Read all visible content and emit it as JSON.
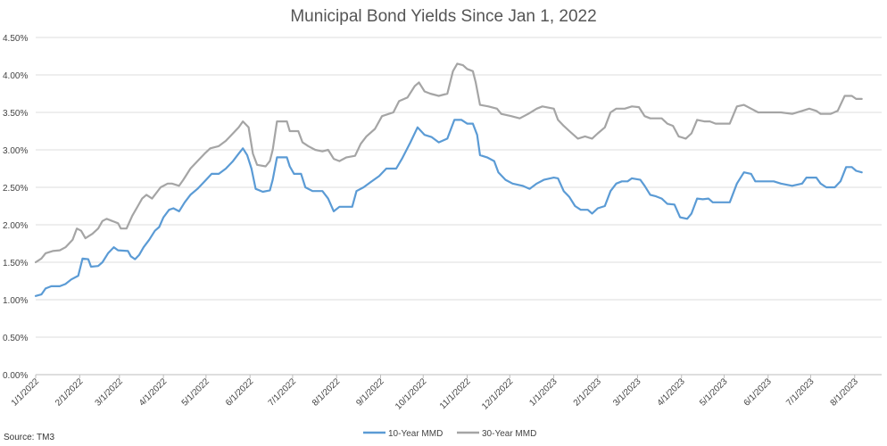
{
  "chart_data": {
    "type": "line",
    "title": "Municipal Bond Yields Since Jan 1, 2022",
    "source": "Source: TM3",
    "xlabel": "",
    "ylabel": "",
    "ylim": [
      0,
      4.5
    ],
    "y_ticks": [
      "0.00%",
      "0.50%",
      "1.00%",
      "1.50%",
      "2.00%",
      "2.50%",
      "3.00%",
      "3.50%",
      "4.00%",
      "4.50%"
    ],
    "y_tick_values": [
      0,
      0.5,
      1.0,
      1.5,
      2.0,
      2.5,
      3.0,
      3.5,
      4.0,
      4.5
    ],
    "x_ticks": [
      "1/1/2022",
      "2/1/2022",
      "3/1/2022",
      "4/1/2022",
      "5/1/2022",
      "6/1/2022",
      "7/1/2022",
      "8/1/2022",
      "9/1/2022",
      "10/1/2022",
      "11/1/2022",
      "12/1/2022",
      "1/1/2023",
      "2/1/2023",
      "3/1/2023",
      "4/1/2023",
      "5/1/2023",
      "6/1/2023",
      "7/1/2023",
      "8/1/2023"
    ],
    "x_range": [
      "2022-01-01",
      "2023-08-20"
    ],
    "grid": "horizontal",
    "legend_position": "bottom",
    "colors": {
      "ten_year": "#5b9bd5",
      "thirty_year": "#a5a5a5",
      "grid": "#dcdcdc"
    },
    "series": [
      {
        "name": "10-Year MMD",
        "color": "#5b9bd5",
        "points": [
          [
            "2022-01-01",
            1.05
          ],
          [
            "2022-01-05",
            1.07
          ],
          [
            "2022-01-08",
            1.15
          ],
          [
            "2022-01-12",
            1.18
          ],
          [
            "2022-01-18",
            1.18
          ],
          [
            "2022-01-22",
            1.21
          ],
          [
            "2022-01-26",
            1.27
          ],
          [
            "2022-01-31",
            1.32
          ],
          [
            "2022-02-03",
            1.55
          ],
          [
            "2022-02-07",
            1.54
          ],
          [
            "2022-02-09",
            1.44
          ],
          [
            "2022-02-14",
            1.45
          ],
          [
            "2022-02-17",
            1.5
          ],
          [
            "2022-02-21",
            1.62
          ],
          [
            "2022-02-25",
            1.7
          ],
          [
            "2022-02-28",
            1.66
          ],
          [
            "2022-03-07",
            1.65
          ],
          [
            "2022-03-09",
            1.58
          ],
          [
            "2022-03-12",
            1.54
          ],
          [
            "2022-03-15",
            1.6
          ],
          [
            "2022-03-18",
            1.7
          ],
          [
            "2022-03-22",
            1.8
          ],
          [
            "2022-03-26",
            1.92
          ],
          [
            "2022-03-29",
            1.97
          ],
          [
            "2022-04-01",
            2.1
          ],
          [
            "2022-04-05",
            2.2
          ],
          [
            "2022-04-08",
            2.22
          ],
          [
            "2022-04-12",
            2.18
          ],
          [
            "2022-04-16",
            2.3
          ],
          [
            "2022-04-20",
            2.4
          ],
          [
            "2022-04-25",
            2.48
          ],
          [
            "2022-05-01",
            2.6
          ],
          [
            "2022-05-05",
            2.68
          ],
          [
            "2022-05-10",
            2.68
          ],
          [
            "2022-05-15",
            2.75
          ],
          [
            "2022-05-20",
            2.85
          ],
          [
            "2022-05-24",
            2.95
          ],
          [
            "2022-05-27",
            3.02
          ],
          [
            "2022-05-30",
            2.93
          ],
          [
            "2022-06-02",
            2.75
          ],
          [
            "2022-06-05",
            2.48
          ],
          [
            "2022-06-10",
            2.44
          ],
          [
            "2022-06-15",
            2.46
          ],
          [
            "2022-06-17",
            2.6
          ],
          [
            "2022-06-20",
            2.9
          ],
          [
            "2022-06-27",
            2.9
          ],
          [
            "2022-06-29",
            2.78
          ],
          [
            "2022-07-02",
            2.68
          ],
          [
            "2022-07-07",
            2.68
          ],
          [
            "2022-07-10",
            2.5
          ],
          [
            "2022-07-15",
            2.45
          ],
          [
            "2022-07-22",
            2.45
          ],
          [
            "2022-07-26",
            2.35
          ],
          [
            "2022-07-30",
            2.18
          ],
          [
            "2022-08-03",
            2.24
          ],
          [
            "2022-08-12",
            2.24
          ],
          [
            "2022-08-15",
            2.45
          ],
          [
            "2022-08-20",
            2.5
          ],
          [
            "2022-08-25",
            2.57
          ],
          [
            "2022-08-31",
            2.65
          ],
          [
            "2022-09-05",
            2.75
          ],
          [
            "2022-09-12",
            2.75
          ],
          [
            "2022-09-16",
            2.88
          ],
          [
            "2022-09-22",
            3.1
          ],
          [
            "2022-09-27",
            3.3
          ],
          [
            "2022-10-02",
            3.2
          ],
          [
            "2022-10-07",
            3.17
          ],
          [
            "2022-10-12",
            3.1
          ],
          [
            "2022-10-18",
            3.15
          ],
          [
            "2022-10-23",
            3.4
          ],
          [
            "2022-10-28",
            3.4
          ],
          [
            "2022-11-01",
            3.35
          ],
          [
            "2022-11-05",
            3.35
          ],
          [
            "2022-11-08",
            3.2
          ],
          [
            "2022-11-10",
            2.93
          ],
          [
            "2022-11-15",
            2.9
          ],
          [
            "2022-11-20",
            2.85
          ],
          [
            "2022-11-23",
            2.7
          ],
          [
            "2022-11-28",
            2.6
          ],
          [
            "2022-12-03",
            2.55
          ],
          [
            "2022-12-10",
            2.52
          ],
          [
            "2022-12-15",
            2.48
          ],
          [
            "2022-12-20",
            2.55
          ],
          [
            "2022-12-25",
            2.6
          ],
          [
            "2023-01-01",
            2.63
          ],
          [
            "2023-01-04",
            2.62
          ],
          [
            "2023-01-08",
            2.45
          ],
          [
            "2023-01-12",
            2.37
          ],
          [
            "2023-01-16",
            2.25
          ],
          [
            "2023-01-20",
            2.2
          ],
          [
            "2023-01-25",
            2.2
          ],
          [
            "2023-01-28",
            2.15
          ],
          [
            "2023-02-01",
            2.22
          ],
          [
            "2023-02-06",
            2.25
          ],
          [
            "2023-02-10",
            2.45
          ],
          [
            "2023-02-14",
            2.55
          ],
          [
            "2023-02-18",
            2.58
          ],
          [
            "2023-02-22",
            2.58
          ],
          [
            "2023-02-25",
            2.62
          ],
          [
            "2023-03-03",
            2.6
          ],
          [
            "2023-03-06",
            2.52
          ],
          [
            "2023-03-10",
            2.4
          ],
          [
            "2023-03-14",
            2.38
          ],
          [
            "2023-03-18",
            2.35
          ],
          [
            "2023-03-22",
            2.28
          ],
          [
            "2023-03-27",
            2.27
          ],
          [
            "2023-03-31",
            2.1
          ],
          [
            "2023-04-05",
            2.08
          ],
          [
            "2023-04-08",
            2.15
          ],
          [
            "2023-04-12",
            2.35
          ],
          [
            "2023-04-16",
            2.34
          ],
          [
            "2023-04-20",
            2.35
          ],
          [
            "2023-04-23",
            2.3
          ],
          [
            "2023-05-05",
            2.3
          ],
          [
            "2023-05-10",
            2.55
          ],
          [
            "2023-05-15",
            2.7
          ],
          [
            "2023-05-20",
            2.68
          ],
          [
            "2023-05-23",
            2.58
          ],
          [
            "2023-06-05",
            2.58
          ],
          [
            "2023-06-10",
            2.55
          ],
          [
            "2023-06-18",
            2.52
          ],
          [
            "2023-06-25",
            2.55
          ],
          [
            "2023-06-28",
            2.63
          ],
          [
            "2023-07-05",
            2.63
          ],
          [
            "2023-07-08",
            2.55
          ],
          [
            "2023-07-12",
            2.5
          ],
          [
            "2023-07-18",
            2.5
          ],
          [
            "2023-07-22",
            2.58
          ],
          [
            "2023-07-26",
            2.77
          ],
          [
            "2023-07-30",
            2.77
          ],
          [
            "2023-08-02",
            2.72
          ],
          [
            "2023-08-06",
            2.7
          ]
        ]
      },
      {
        "name": "30-Year MMD",
        "color": "#a5a5a5",
        "points": [
          [
            "2022-01-01",
            1.5
          ],
          [
            "2022-01-05",
            1.55
          ],
          [
            "2022-01-08",
            1.62
          ],
          [
            "2022-01-13",
            1.65
          ],
          [
            "2022-01-18",
            1.66
          ],
          [
            "2022-01-22",
            1.7
          ],
          [
            "2022-01-27",
            1.8
          ],
          [
            "2022-01-30",
            1.95
          ],
          [
            "2022-02-02",
            1.92
          ],
          [
            "2022-02-05",
            1.82
          ],
          [
            "2022-02-10",
            1.88
          ],
          [
            "2022-02-14",
            1.95
          ],
          [
            "2022-02-17",
            2.05
          ],
          [
            "2022-02-20",
            2.08
          ],
          [
            "2022-02-24",
            2.05
          ],
          [
            "2022-02-28",
            2.02
          ],
          [
            "2022-03-02",
            1.95
          ],
          [
            "2022-03-06",
            1.95
          ],
          [
            "2022-03-10",
            2.12
          ],
          [
            "2022-03-14",
            2.25
          ],
          [
            "2022-03-17",
            2.35
          ],
          [
            "2022-03-20",
            2.4
          ],
          [
            "2022-03-24",
            2.35
          ],
          [
            "2022-03-30",
            2.5
          ],
          [
            "2022-04-04",
            2.55
          ],
          [
            "2022-04-07",
            2.55
          ],
          [
            "2022-04-12",
            2.52
          ],
          [
            "2022-04-15",
            2.6
          ],
          [
            "2022-04-20",
            2.75
          ],
          [
            "2022-04-25",
            2.85
          ],
          [
            "2022-04-30",
            2.95
          ],
          [
            "2022-05-04",
            3.02
          ],
          [
            "2022-05-10",
            3.05
          ],
          [
            "2022-05-15",
            3.12
          ],
          [
            "2022-05-20",
            3.22
          ],
          [
            "2022-05-24",
            3.3
          ],
          [
            "2022-05-27",
            3.38
          ],
          [
            "2022-05-31",
            3.3
          ],
          [
            "2022-06-03",
            2.95
          ],
          [
            "2022-06-06",
            2.8
          ],
          [
            "2022-06-12",
            2.78
          ],
          [
            "2022-06-15",
            2.85
          ],
          [
            "2022-06-17",
            3.0
          ],
          [
            "2022-06-20",
            3.38
          ],
          [
            "2022-06-27",
            3.38
          ],
          [
            "2022-06-29",
            3.25
          ],
          [
            "2022-07-05",
            3.25
          ],
          [
            "2022-07-08",
            3.1
          ],
          [
            "2022-07-12",
            3.05
          ],
          [
            "2022-07-17",
            3.0
          ],
          [
            "2022-07-22",
            2.98
          ],
          [
            "2022-07-26",
            3.0
          ],
          [
            "2022-07-30",
            2.88
          ],
          [
            "2022-08-03",
            2.85
          ],
          [
            "2022-08-08",
            2.9
          ],
          [
            "2022-08-14",
            2.92
          ],
          [
            "2022-08-18",
            3.08
          ],
          [
            "2022-08-22",
            3.18
          ],
          [
            "2022-08-28",
            3.28
          ],
          [
            "2022-09-02",
            3.45
          ],
          [
            "2022-09-10",
            3.5
          ],
          [
            "2022-09-14",
            3.65
          ],
          [
            "2022-09-20",
            3.7
          ],
          [
            "2022-09-25",
            3.85
          ],
          [
            "2022-09-28",
            3.9
          ],
          [
            "2022-10-02",
            3.78
          ],
          [
            "2022-10-06",
            3.75
          ],
          [
            "2022-10-12",
            3.72
          ],
          [
            "2022-10-18",
            3.75
          ],
          [
            "2022-10-22",
            4.05
          ],
          [
            "2022-10-25",
            4.15
          ],
          [
            "2022-10-29",
            4.13
          ],
          [
            "2022-11-01",
            4.08
          ],
          [
            "2022-11-05",
            4.05
          ],
          [
            "2022-11-07",
            3.9
          ],
          [
            "2022-11-10",
            3.6
          ],
          [
            "2022-11-16",
            3.58
          ],
          [
            "2022-11-22",
            3.55
          ],
          [
            "2022-11-25",
            3.48
          ],
          [
            "2022-12-02",
            3.45
          ],
          [
            "2022-12-08",
            3.42
          ],
          [
            "2022-12-14",
            3.48
          ],
          [
            "2022-12-20",
            3.55
          ],
          [
            "2022-12-24",
            3.58
          ],
          [
            "2023-01-01",
            3.55
          ],
          [
            "2023-01-04",
            3.4
          ],
          [
            "2023-01-08",
            3.32
          ],
          [
            "2023-01-12",
            3.25
          ],
          [
            "2023-01-18",
            3.15
          ],
          [
            "2023-01-23",
            3.18
          ],
          [
            "2023-01-28",
            3.15
          ],
          [
            "2023-02-01",
            3.22
          ],
          [
            "2023-02-06",
            3.3
          ],
          [
            "2023-02-10",
            3.5
          ],
          [
            "2023-02-14",
            3.55
          ],
          [
            "2023-02-20",
            3.55
          ],
          [
            "2023-02-25",
            3.58
          ],
          [
            "2023-03-02",
            3.57
          ],
          [
            "2023-03-06",
            3.45
          ],
          [
            "2023-03-10",
            3.42
          ],
          [
            "2023-03-18",
            3.42
          ],
          [
            "2023-03-22",
            3.35
          ],
          [
            "2023-03-26",
            3.32
          ],
          [
            "2023-03-30",
            3.18
          ],
          [
            "2023-04-04",
            3.15
          ],
          [
            "2023-04-08",
            3.22
          ],
          [
            "2023-04-12",
            3.4
          ],
          [
            "2023-04-17",
            3.38
          ],
          [
            "2023-04-21",
            3.38
          ],
          [
            "2023-04-25",
            3.35
          ],
          [
            "2023-05-05",
            3.35
          ],
          [
            "2023-05-10",
            3.58
          ],
          [
            "2023-05-15",
            3.6
          ],
          [
            "2023-05-20",
            3.55
          ],
          [
            "2023-05-25",
            3.5
          ],
          [
            "2023-06-10",
            3.5
          ],
          [
            "2023-06-18",
            3.48
          ],
          [
            "2023-06-25",
            3.52
          ],
          [
            "2023-06-30",
            3.55
          ],
          [
            "2023-07-05",
            3.52
          ],
          [
            "2023-07-08",
            3.48
          ],
          [
            "2023-07-15",
            3.48
          ],
          [
            "2023-07-20",
            3.52
          ],
          [
            "2023-07-25",
            3.72
          ],
          [
            "2023-07-30",
            3.72
          ],
          [
            "2023-08-02",
            3.68
          ],
          [
            "2023-08-06",
            3.68
          ]
        ]
      }
    ]
  }
}
